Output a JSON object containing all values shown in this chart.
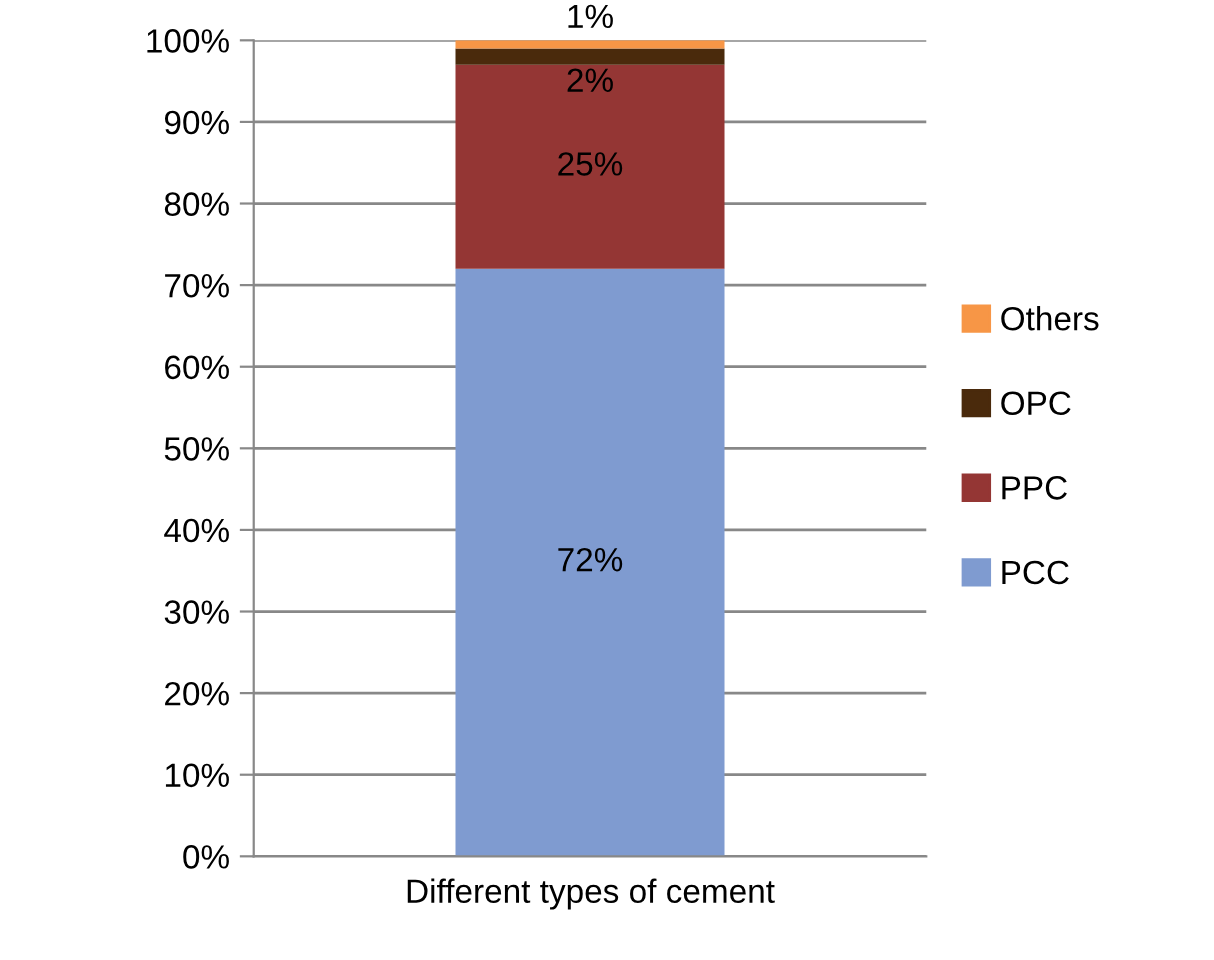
{
  "chart_data": {
    "type": "bar",
    "stacked": true,
    "categories": [
      "Different types of cement"
    ],
    "series": [
      {
        "name": "PCC",
        "color": "#7f9bd0",
        "values": [
          72
        ],
        "value_labels": [
          "72%"
        ]
      },
      {
        "name": "PPC",
        "color": "#943634",
        "values": [
          25
        ],
        "value_labels": [
          "25%"
        ]
      },
      {
        "name": "OPC",
        "color": "#4a2a0c",
        "values": [
          2
        ],
        "value_labels": [
          "2%"
        ]
      },
      {
        "name": "Others",
        "color": "#f79646",
        "values": [
          1
        ],
        "value_labels": [
          "1%"
        ]
      }
    ],
    "ylim": [
      0,
      100
    ],
    "yticks": [
      {
        "value": 0,
        "label": "0%"
      },
      {
        "value": 10,
        "label": "10%"
      },
      {
        "value": 20,
        "label": "20%"
      },
      {
        "value": 30,
        "label": "30%"
      },
      {
        "value": 40,
        "label": "40%"
      },
      {
        "value": 50,
        "label": "50%"
      },
      {
        "value": 60,
        "label": "60%"
      },
      {
        "value": 70,
        "label": "70%"
      },
      {
        "value": 80,
        "label": "80%"
      },
      {
        "value": 90,
        "label": "90%"
      },
      {
        "value": 100,
        "label": "100%"
      }
    ],
    "grid": "y",
    "legend": "right"
  }
}
